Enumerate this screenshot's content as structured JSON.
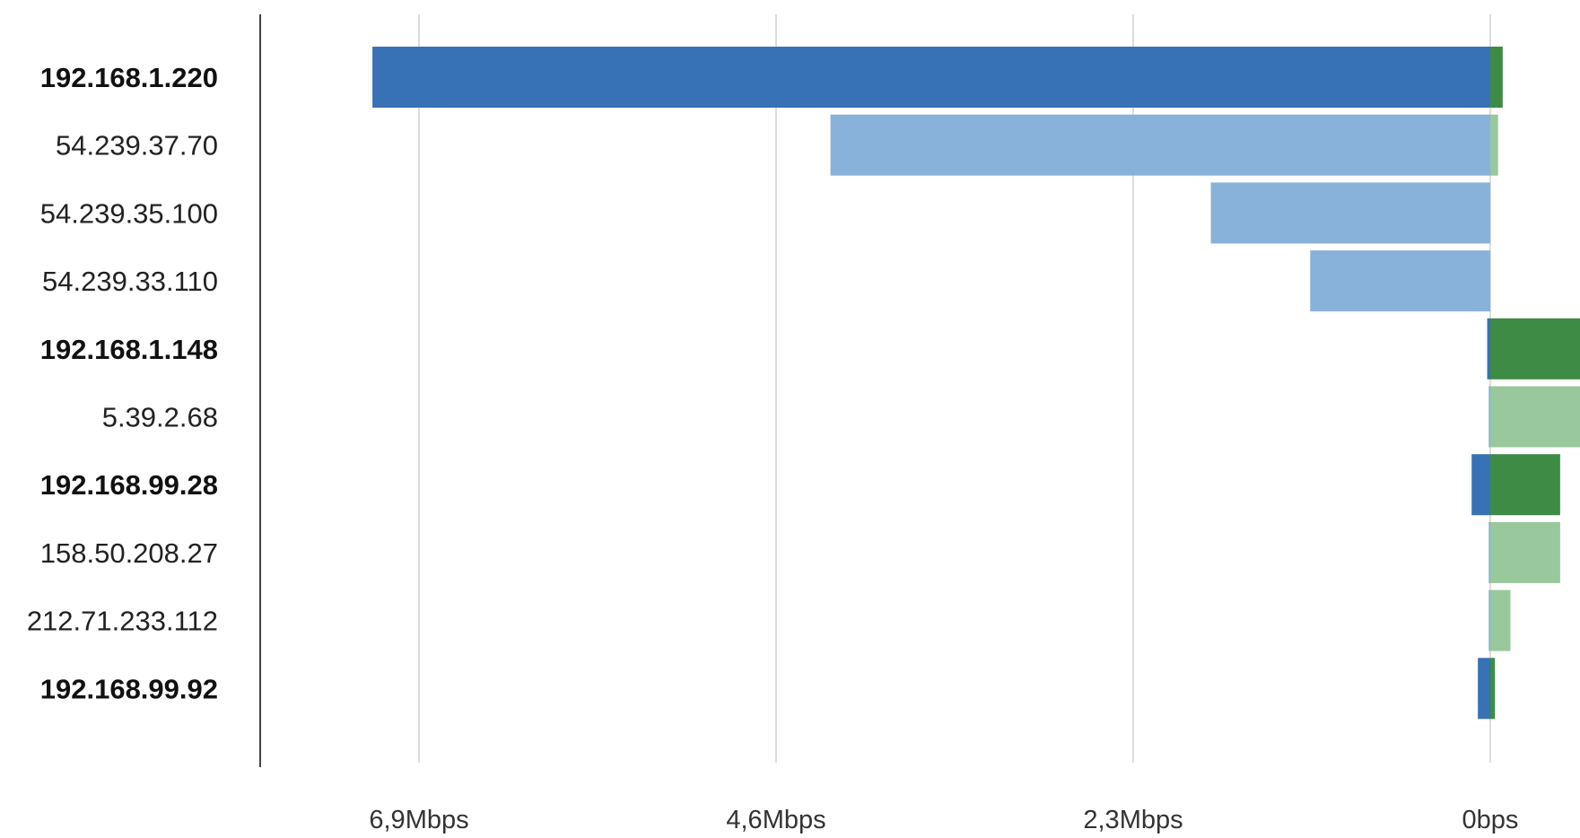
{
  "chart_data": {
    "type": "bar",
    "orientation": "horizontal-diverging",
    "title": "",
    "xlabel": "",
    "ylabel": "",
    "axis_ticks": [
      {
        "label": "6,9Mbps",
        "value": 6.9
      },
      {
        "label": "4,6Mbps",
        "value": 4.6
      },
      {
        "label": "2,3Mbps",
        "value": 2.3
      },
      {
        "label": "0bps",
        "value": 0
      }
    ],
    "unit_scale": "Mbps",
    "xlim_left": 7.9,
    "xlim_right": 0.6,
    "grid": true,
    "legend": "none",
    "categories": [
      "192.168.1.220",
      "54.239.37.70",
      "54.239.35.100",
      "54.239.33.110",
      "192.168.1.148",
      "5.39.2.68",
      "192.168.99.28",
      "158.50.208.27",
      "212.71.233.112",
      "192.168.99.92"
    ],
    "local_hosts": [
      true,
      false,
      false,
      false,
      true,
      false,
      true,
      false,
      false,
      true
    ],
    "series": [
      {
        "direction": "left",
        "values": [
          7.2,
          4.25,
          1.8,
          1.16,
          0.02,
          0.01,
          0.12,
          0.01,
          0.01,
          0.08
        ]
      },
      {
        "direction": "right",
        "values": [
          0.08,
          0.05,
          0.0,
          0.0,
          0.6,
          0.6,
          0.45,
          0.45,
          0.13,
          0.03
        ]
      }
    ],
    "colors": {
      "blue_local": "#3672b5",
      "blue_remote": "#88b2d9",
      "green_local": "#3d8b45",
      "green_remote": "#98c89c",
      "grid": "#dcdcdc",
      "axis": "#444444"
    }
  }
}
